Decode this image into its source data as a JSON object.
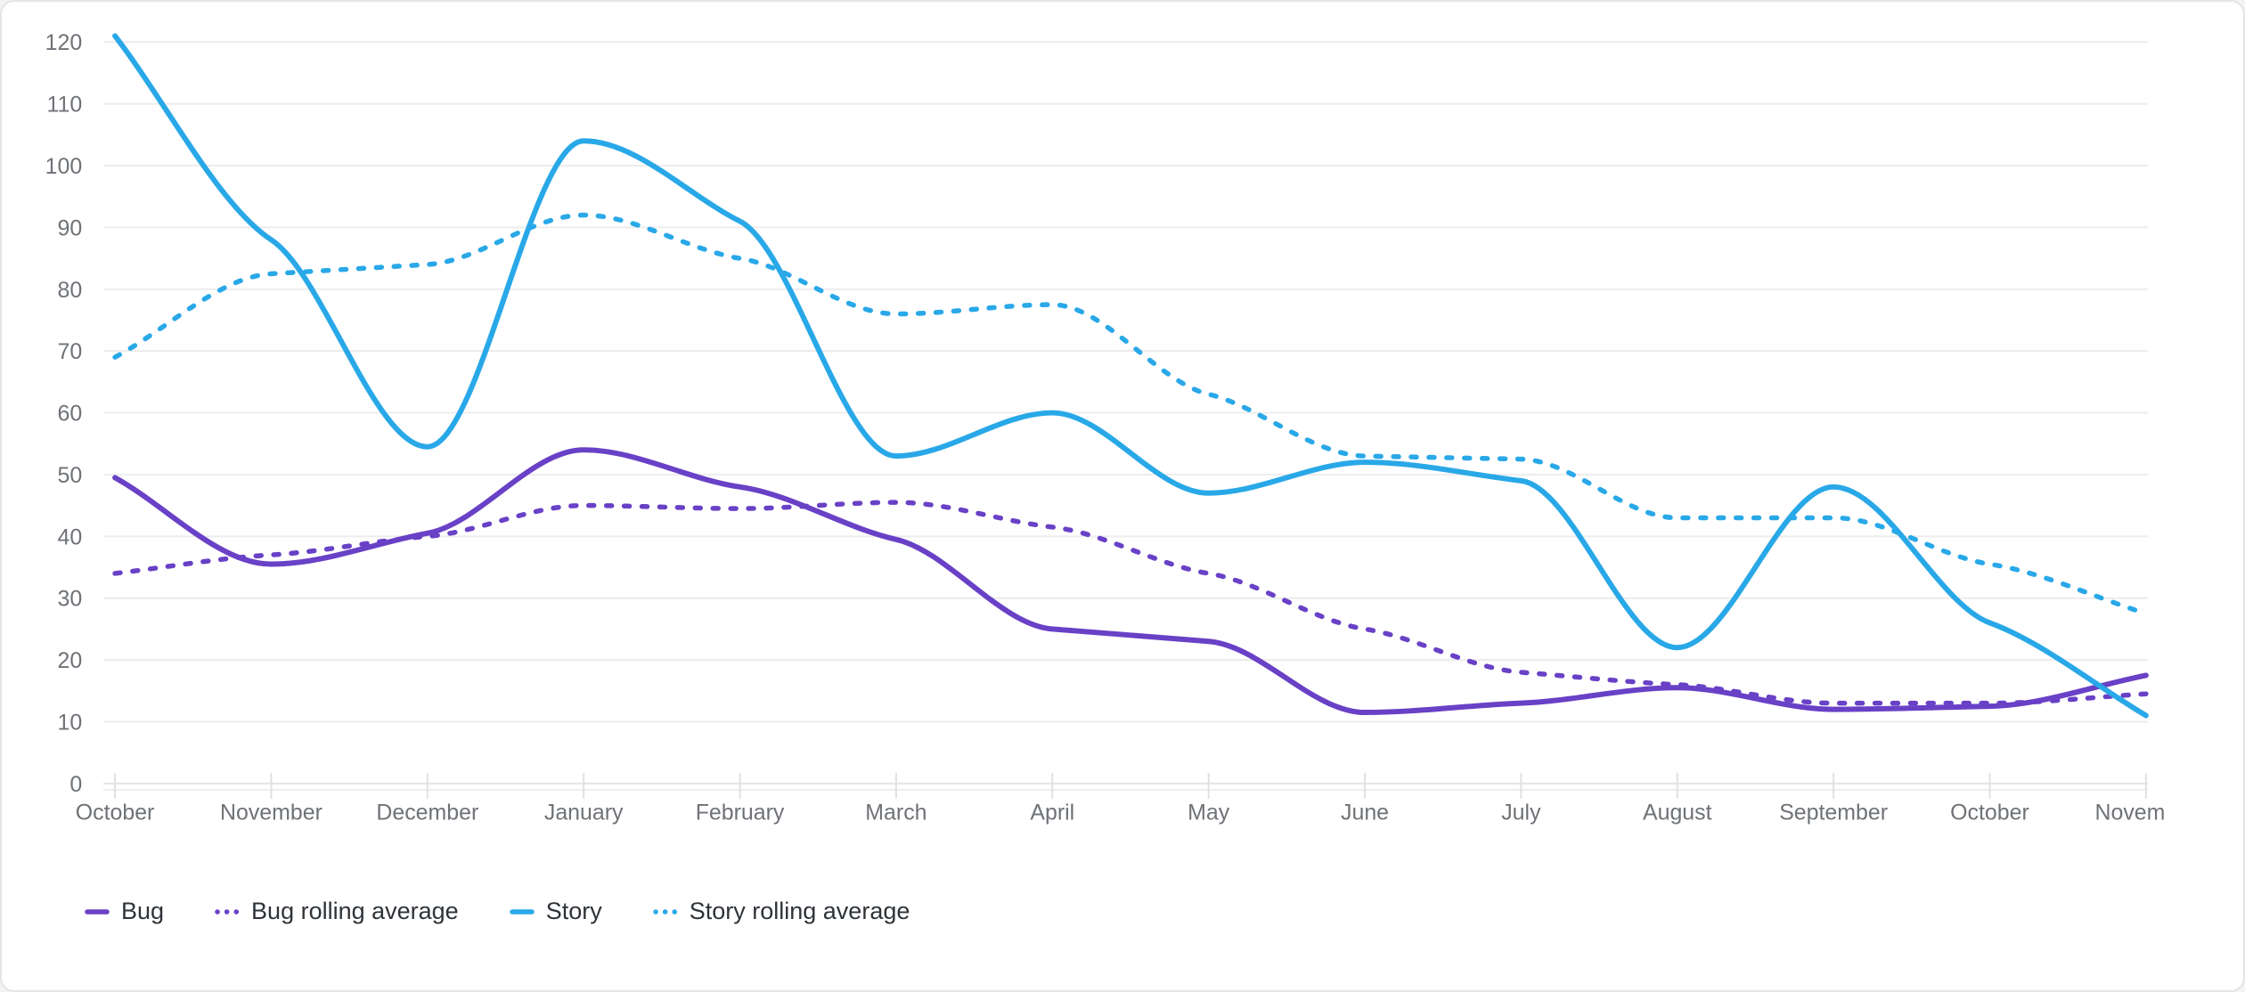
{
  "chart_data": {
    "type": "line",
    "title": "",
    "interpolation": "monotone",
    "grid": "horizontal",
    "legend_position": "bottom-left",
    "categories": [
      "October",
      "November",
      "December",
      "January",
      "February",
      "March",
      "April",
      "May",
      "June",
      "July",
      "August",
      "September",
      "October",
      "Novem"
    ],
    "x_axis": {
      "label": "",
      "tick_count": 14
    },
    "y_axis": {
      "label": "",
      "min": 0,
      "max": 120,
      "step": 10,
      "ticks": [
        "0",
        "10",
        "20",
        "30",
        "40",
        "50",
        "60",
        "70",
        "80",
        "90",
        "100",
        "110",
        "120"
      ]
    },
    "series": [
      {
        "name": "Bug",
        "color": "#6941c6",
        "dash": "solid",
        "values": [
          49.5,
          35.5,
          40.5,
          54,
          48,
          39.5,
          25,
          23,
          11.5,
          13,
          15.5,
          12,
          12.5,
          17.5
        ]
      },
      {
        "name": "Bug rolling average",
        "color": "#6941c6",
        "dash": "dashed",
        "values": [
          34,
          37,
          40,
          45,
          44.5,
          45.5,
          41.5,
          34,
          25,
          18,
          16,
          13,
          13,
          14.5
        ]
      },
      {
        "name": "Story",
        "color": "#29a8e8",
        "dash": "solid",
        "values": [
          121,
          88,
          54.5,
          104,
          91,
          53,
          60,
          47,
          52,
          49,
          22,
          48,
          26,
          11
        ]
      },
      {
        "name": "Story rolling average",
        "color": "#29a8e8",
        "dash": "dashed",
        "values": [
          69,
          82.5,
          84,
          92,
          85,
          76,
          77.5,
          63,
          53,
          52.5,
          43,
          43,
          35.5,
          27.5
        ]
      }
    ],
    "colors": {
      "bug": "#6941c6",
      "story": "#29a8e8",
      "gridline": "#ececec",
      "axis_line": "#e3e4e6",
      "tick_mark": "#e0e1e3",
      "axis_text": "#6e7277",
      "legend_text": "#2e3338",
      "background": "#ffffff"
    }
  }
}
